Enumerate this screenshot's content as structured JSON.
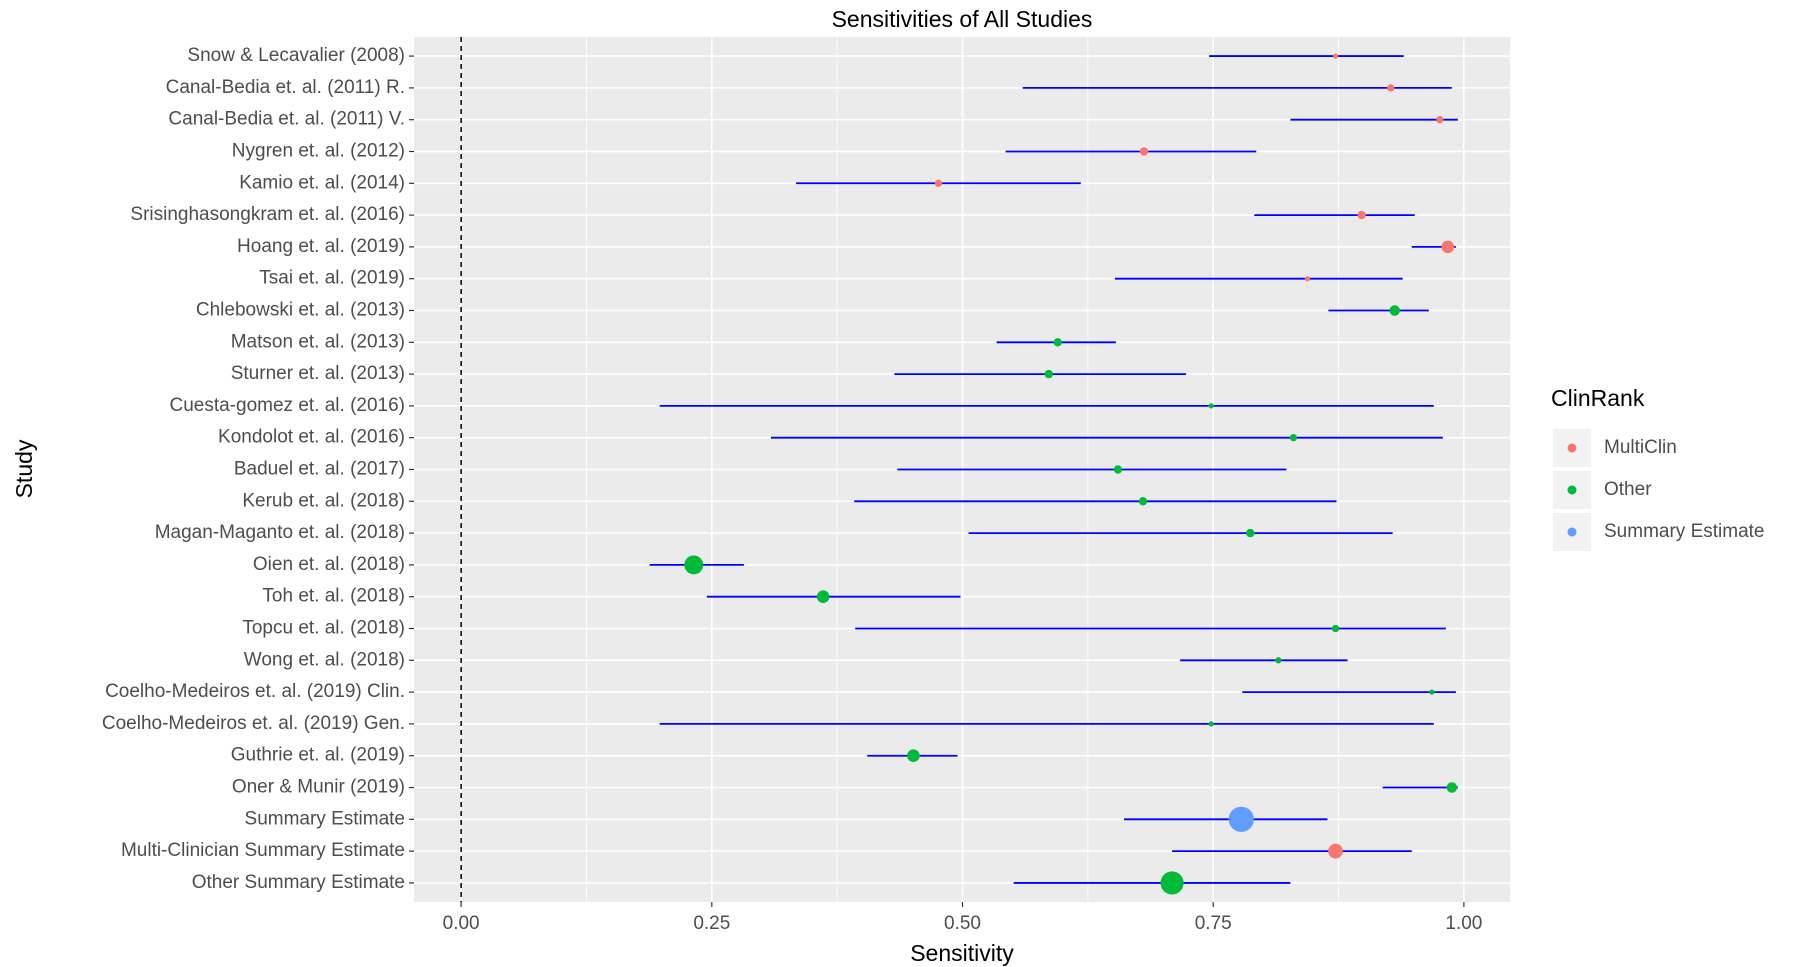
{
  "chart_data": {
    "type": "forest",
    "title": "Sensitivities of All Studies",
    "x_label": "Sensitivity",
    "y_label": "Study",
    "legend_title": "ClinRank",
    "legend": [
      {
        "name": "MultiClin",
        "color": "#F8766D"
      },
      {
        "name": "Other",
        "color": "#00BA38"
      },
      {
        "name": "Summary Estimate",
        "color": "#619CFF"
      }
    ],
    "error_color": "#0000FF",
    "vline": 0,
    "xlim": [
      -0.047,
      1.046
    ],
    "xticks": [
      {
        "value": 0,
        "label": "0.00"
      },
      {
        "value": 0.25,
        "label": "0.25"
      },
      {
        "value": 0.5,
        "label": "0.50"
      },
      {
        "value": 0.75,
        "label": "0.75"
      },
      {
        "value": 1,
        "label": "1.00"
      }
    ],
    "grid": true,
    "rows": [
      {
        "study": "Snow & Lecavalier (2008)",
        "value": 0.872,
        "lower": 0.746,
        "upper": 0.94,
        "size": 2.5,
        "group": "MultiClin"
      },
      {
        "study": "Canal-Bedia et. al. (2011) R.",
        "value": 0.927,
        "lower": 0.56,
        "upper": 0.988,
        "size": 3.5,
        "group": "MultiClin"
      },
      {
        "study": "Canal-Bedia et. al. (2011) V.",
        "value": 0.976,
        "lower": 0.827,
        "upper": 0.994,
        "size": 3.5,
        "group": "MultiClin"
      },
      {
        "study": "Nygren et. al. (2012)",
        "value": 0.681,
        "lower": 0.543,
        "upper": 0.793,
        "size": 4,
        "group": "MultiClin"
      },
      {
        "study": "Kamio et. al. (2014)",
        "value": 0.476,
        "lower": 0.334,
        "upper": 0.618,
        "size": 3.5,
        "group": "MultiClin"
      },
      {
        "study": "Srisinghasongkram et. al. (2016)",
        "value": 0.898,
        "lower": 0.791,
        "upper": 0.951,
        "size": 4,
        "group": "MultiClin"
      },
      {
        "study": "Hoang et. al. (2019)",
        "value": 0.984,
        "lower": 0.948,
        "upper": 0.992,
        "size": 6,
        "group": "MultiClin"
      },
      {
        "study": "Tsai et. al. (2019)",
        "value": 0.844,
        "lower": 0.652,
        "upper": 0.939,
        "size": 2.5,
        "group": "MultiClin"
      },
      {
        "study": "Chlebowski et. al. (2013)",
        "value": 0.931,
        "lower": 0.865,
        "upper": 0.965,
        "size": 5,
        "group": "Other"
      },
      {
        "study": "Matson et. al. (2013)",
        "value": 0.595,
        "lower": 0.534,
        "upper": 0.653,
        "size": 4,
        "group": "Other"
      },
      {
        "study": "Sturner et. al. (2013)",
        "value": 0.586,
        "lower": 0.432,
        "upper": 0.723,
        "size": 4,
        "group": "Other"
      },
      {
        "study": "Cuesta-gomez et. al. (2016)",
        "value": 0.748,
        "lower": 0.198,
        "upper": 0.97,
        "size": 2.5,
        "group": "Other"
      },
      {
        "study": "Kondolot et. al. (2016)",
        "value": 0.83,
        "lower": 0.309,
        "upper": 0.979,
        "size": 3.5,
        "group": "Other"
      },
      {
        "study": "Baduel et. al. (2017)",
        "value": 0.655,
        "lower": 0.435,
        "upper": 0.823,
        "size": 4,
        "group": "Other"
      },
      {
        "study": "Kerub et. al. (2018)",
        "value": 0.68,
        "lower": 0.392,
        "upper": 0.873,
        "size": 4,
        "group": "Other"
      },
      {
        "study": "Magan-Maganto et. al. (2018)",
        "value": 0.787,
        "lower": 0.506,
        "upper": 0.929,
        "size": 4,
        "group": "Other"
      },
      {
        "study": "Oien et. al. (2018)",
        "value": 0.232,
        "lower": 0.188,
        "upper": 0.282,
        "size": 9,
        "group": "Other"
      },
      {
        "study": "Toh et. al. (2018)",
        "value": 0.361,
        "lower": 0.245,
        "upper": 0.498,
        "size": 6,
        "group": "Other"
      },
      {
        "study": "Topcu et. al. (2018)",
        "value": 0.872,
        "lower": 0.393,
        "upper": 0.982,
        "size": 3.5,
        "group": "Other"
      },
      {
        "study": "Wong et. al. (2018)",
        "value": 0.815,
        "lower": 0.717,
        "upper": 0.884,
        "size": 3,
        "group": "Other"
      },
      {
        "study": "Coelho-Medeiros et. al. (2019) Clin.",
        "value": 0.968,
        "lower": 0.779,
        "upper": 0.992,
        "size": 2.5,
        "group": "Other"
      },
      {
        "study": "Coelho-Medeiros et. al. (2019) Gen.",
        "value": 0.748,
        "lower": 0.198,
        "upper": 0.97,
        "size": 2.5,
        "group": "Other"
      },
      {
        "study": "Guthrie et. al. (2019)",
        "value": 0.451,
        "lower": 0.405,
        "upper": 0.495,
        "size": 6,
        "group": "Other"
      },
      {
        "study": "Oner & Munir (2019)",
        "value": 0.988,
        "lower": 0.919,
        "upper": 0.994,
        "size": 5,
        "group": "Other"
      },
      {
        "study": "Summary Estimate",
        "value": 0.778,
        "lower": 0.661,
        "upper": 0.864,
        "size": 12,
        "group": "Summary Estimate"
      },
      {
        "study": "Multi-Clinician Summary Estimate",
        "value": 0.872,
        "lower": 0.709,
        "upper": 0.948,
        "size": 7,
        "group": "MultiClin"
      },
      {
        "study": "Other Summary Estimate",
        "value": 0.709,
        "lower": 0.551,
        "upper": 0.827,
        "size": 11,
        "group": "Other"
      }
    ]
  }
}
